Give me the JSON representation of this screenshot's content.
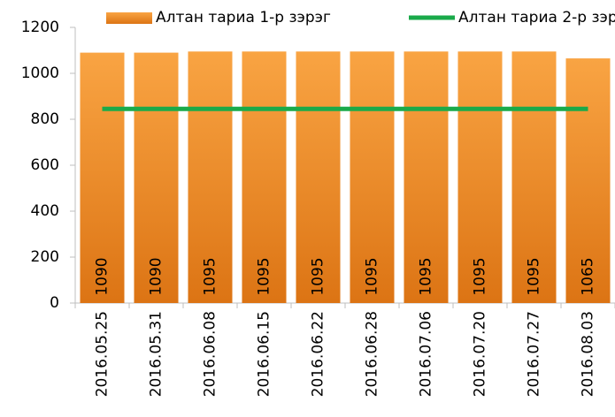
{
  "chart_data": {
    "type": "bar",
    "categories": [
      "2016.05.25",
      "2016.05.31",
      "2016.06.08",
      "2016.06.15",
      "2016.06.22",
      "2016.06.28",
      "2016.07.06",
      "2016.07.20",
      "2016.07.27",
      "2016.08.03"
    ],
    "series": [
      {
        "name": "Алтан тариа 1-р зэрэг",
        "type": "bar",
        "color": "#f39330",
        "values": [
          1090,
          1090,
          1095,
          1095,
          1095,
          1095,
          1095,
          1095,
          1095,
          1065
        ]
      },
      {
        "name": "Алтан тариа 2-р зэрэг",
        "type": "line",
        "color": "#1aaa4a",
        "values": [
          845,
          845,
          845,
          845,
          845,
          845,
          845,
          845,
          845,
          845
        ]
      }
    ],
    "ylim": [
      0,
      1200
    ],
    "yticks": [
      0,
      200,
      400,
      600,
      800,
      1000,
      1200
    ],
    "legend": "top",
    "grid": false
  }
}
